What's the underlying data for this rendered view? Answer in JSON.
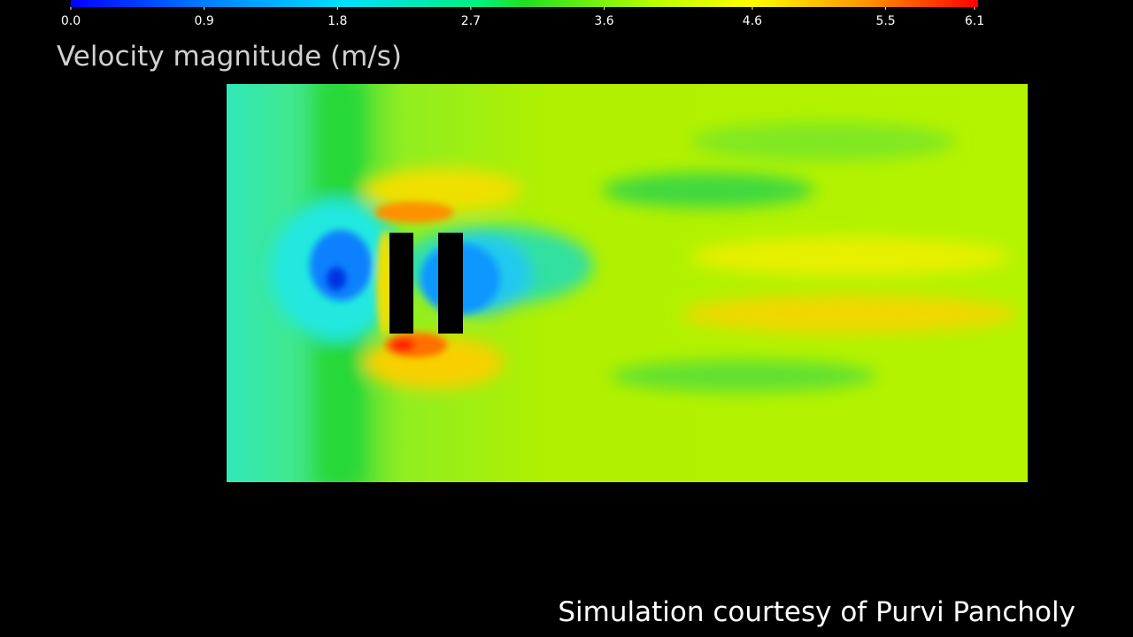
{
  "colorbar": {
    "title": "Velocity magnitude (m/s)",
    "clim": [
      0,
      6.1
    ],
    "ticks": [
      {
        "value": 0,
        "label": "0.0"
      },
      0.9,
      1.8,
      2.7,
      3.6,
      4.6,
      5.5,
      6.1
    ]
  },
  "credit": "Simulation courtesy of Purvi Pancholy"
}
